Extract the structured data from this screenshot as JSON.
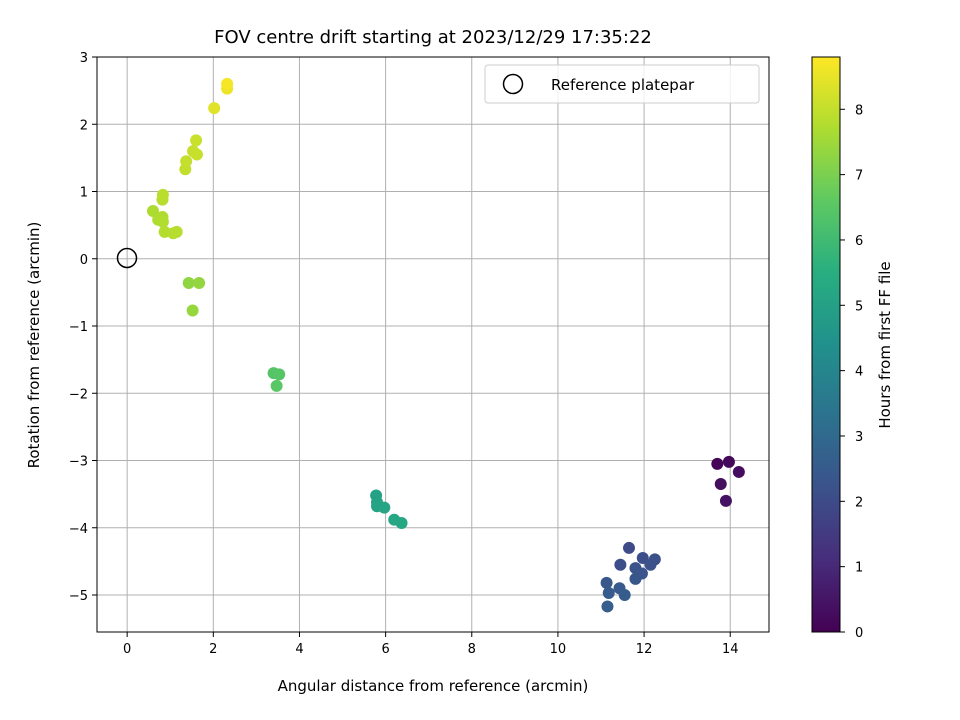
{
  "chart_data": {
    "type": "scatter",
    "title": "FOV centre drift starting at 2023/12/29 17:35:22",
    "xlabel": "Angular distance from reference (arcmin)",
    "ylabel": "Rotation from reference (arcmin)",
    "xlim": [
      -0.7,
      14.9
    ],
    "ylim": [
      -5.55,
      3.0
    ],
    "xticks": [
      "0",
      "2",
      "4",
      "6",
      "8",
      "10",
      "12",
      "14"
    ],
    "xtick_values": [
      0,
      2,
      4,
      6,
      8,
      10,
      12,
      14
    ],
    "yticks": [
      "−5",
      "−4",
      "−3",
      "−2",
      "−1",
      "0",
      "1",
      "2",
      "3"
    ],
    "ytick_values": [
      -5,
      -4,
      -3,
      -2,
      -1,
      0,
      1,
      2,
      3
    ],
    "grid": true,
    "legend": {
      "placement": "top-right",
      "entries": [
        "Reference platepar"
      ]
    },
    "reference_point": {
      "x": 0,
      "y": 0,
      "marker": "open-circle"
    },
    "colorbar": {
      "label": "Hours from first FF file",
      "min": 0,
      "max": 8.8,
      "ticks": [
        "0",
        "1",
        "2",
        "3",
        "4",
        "5",
        "6",
        "7",
        "8"
      ],
      "tick_values": [
        0,
        1,
        2,
        3,
        4,
        5,
        6,
        7,
        8
      ],
      "colormap": "viridis"
    },
    "points": [
      {
        "x": 13.7,
        "y": -3.05,
        "c": 0.1
      },
      {
        "x": 13.97,
        "y": -3.02,
        "c": 0.2
      },
      {
        "x": 14.2,
        "y": -3.17,
        "c": 0.3
      },
      {
        "x": 13.78,
        "y": -3.35,
        "c": 0.35
      },
      {
        "x": 13.9,
        "y": -3.6,
        "c": 0.4
      },
      {
        "x": 11.65,
        "y": -4.3,
        "c": 2.0
      },
      {
        "x": 11.45,
        "y": -4.55,
        "c": 2.05
      },
      {
        "x": 11.97,
        "y": -4.45,
        "c": 2.1
      },
      {
        "x": 12.25,
        "y": -4.47,
        "c": 2.15
      },
      {
        "x": 12.15,
        "y": -4.55,
        "c": 2.2
      },
      {
        "x": 11.8,
        "y": -4.6,
        "c": 2.25
      },
      {
        "x": 11.95,
        "y": -4.68,
        "c": 2.3
      },
      {
        "x": 11.8,
        "y": -4.76,
        "c": 2.35
      },
      {
        "x": 11.13,
        "y": -4.82,
        "c": 2.4
      },
      {
        "x": 11.43,
        "y": -4.9,
        "c": 2.45
      },
      {
        "x": 11.18,
        "y": -4.97,
        "c": 2.5
      },
      {
        "x": 11.55,
        "y": -5.0,
        "c": 2.55
      },
      {
        "x": 11.15,
        "y": -5.17,
        "c": 2.6
      },
      {
        "x": 5.78,
        "y": -3.52,
        "c": 5.0
      },
      {
        "x": 5.8,
        "y": -3.62,
        "c": 5.05
      },
      {
        "x": 5.8,
        "y": -3.68,
        "c": 5.1
      },
      {
        "x": 5.97,
        "y": -3.7,
        "c": 5.15
      },
      {
        "x": 6.2,
        "y": -3.88,
        "c": 5.2
      },
      {
        "x": 6.37,
        "y": -3.93,
        "c": 5.25
      },
      {
        "x": 3.4,
        "y": -1.7,
        "c": 6.4
      },
      {
        "x": 3.53,
        "y": -1.72,
        "c": 6.45
      },
      {
        "x": 3.47,
        "y": -1.89,
        "c": 6.5
      },
      {
        "x": 1.43,
        "y": -0.36,
        "c": 7.3
      },
      {
        "x": 1.67,
        "y": -0.36,
        "c": 7.35
      },
      {
        "x": 1.52,
        "y": -0.77,
        "c": 7.4
      },
      {
        "x": 0.6,
        "y": 0.71,
        "c": 7.7
      },
      {
        "x": 0.82,
        "y": 0.62,
        "c": 7.72
      },
      {
        "x": 0.72,
        "y": 0.58,
        "c": 7.74
      },
      {
        "x": 0.83,
        "y": 0.55,
        "c": 7.76
      },
      {
        "x": 0.87,
        "y": 0.4,
        "c": 7.78
      },
      {
        "x": 1.07,
        "y": 0.38,
        "c": 7.8
      },
      {
        "x": 1.15,
        "y": 0.4,
        "c": 7.82
      },
      {
        "x": 0.82,
        "y": 0.88,
        "c": 7.84
      },
      {
        "x": 0.83,
        "y": 0.95,
        "c": 7.86
      },
      {
        "x": 1.35,
        "y": 1.33,
        "c": 8.0
      },
      {
        "x": 1.37,
        "y": 1.45,
        "c": 8.02
      },
      {
        "x": 1.53,
        "y": 1.6,
        "c": 8.04
      },
      {
        "x": 1.62,
        "y": 1.55,
        "c": 8.06
      },
      {
        "x": 1.6,
        "y": 1.76,
        "c": 8.08
      },
      {
        "x": 2.02,
        "y": 2.24,
        "c": 8.4
      },
      {
        "x": 2.32,
        "y": 2.53,
        "c": 8.6
      },
      {
        "x": 2.32,
        "y": 2.6,
        "c": 8.7
      }
    ]
  }
}
